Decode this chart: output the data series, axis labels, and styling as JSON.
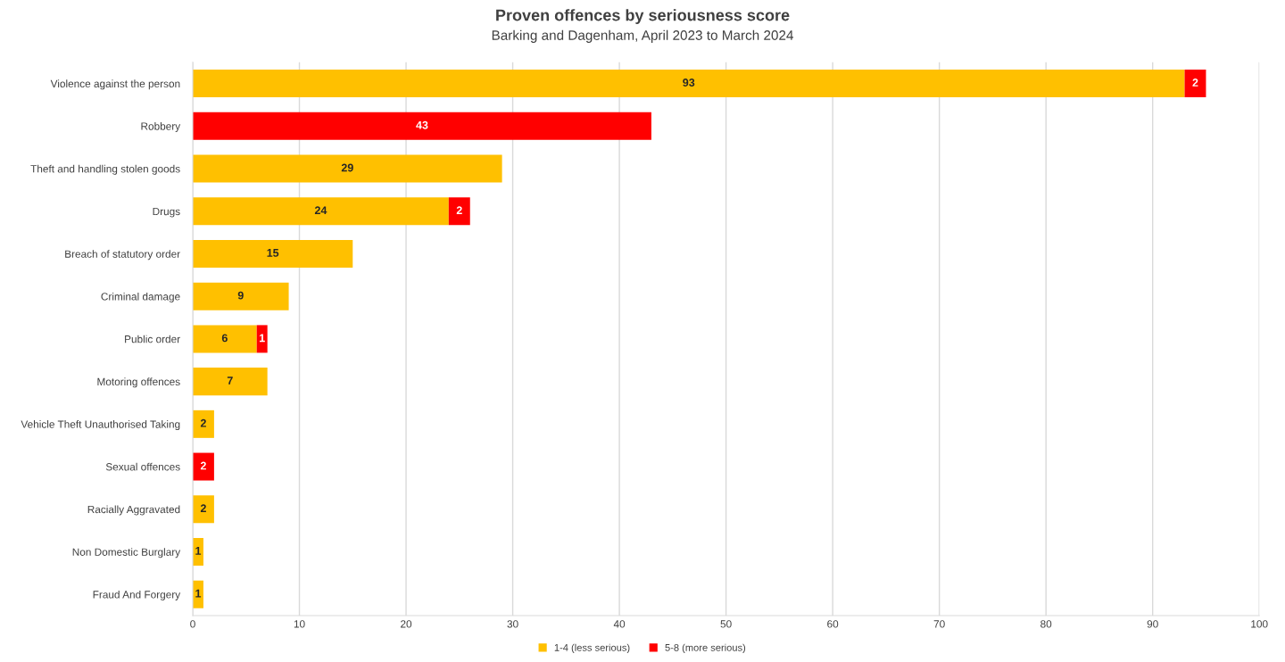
{
  "chart_data": {
    "type": "bar",
    "orientation": "horizontal",
    "stacked": true,
    "title": "Proven offences by seriousness score",
    "subtitle": "Barking and Dagenham, April 2023 to March 2024",
    "categories": [
      "Violence against the person",
      "Robbery",
      "Theft and handling stolen goods",
      "Drugs",
      "Breach of statutory order",
      "Criminal damage",
      "Public order",
      "Motoring offences",
      "Vehicle Theft Unauthorised Taking",
      "Sexual offences",
      "Racially Aggravated",
      "Non Domestic Burglary",
      "Fraud And Forgery"
    ],
    "series": [
      {
        "name": "1-4 (less serious)",
        "color": "#ffc000",
        "values": [
          93,
          null,
          29,
          24,
          15,
          9,
          6,
          7,
          2,
          null,
          2,
          1,
          1
        ]
      },
      {
        "name": "5-8 (more serious)",
        "color": "#ff0000",
        "values": [
          2,
          43,
          null,
          2,
          null,
          null,
          1,
          null,
          null,
          2,
          null,
          null,
          null
        ]
      }
    ],
    "xlim": [
      0,
      100
    ],
    "xticks": [
      0,
      10,
      20,
      30,
      40,
      50,
      60,
      70,
      80,
      90,
      100
    ],
    "grid": "x",
    "legend": "bottom",
    "data_labels": true
  }
}
